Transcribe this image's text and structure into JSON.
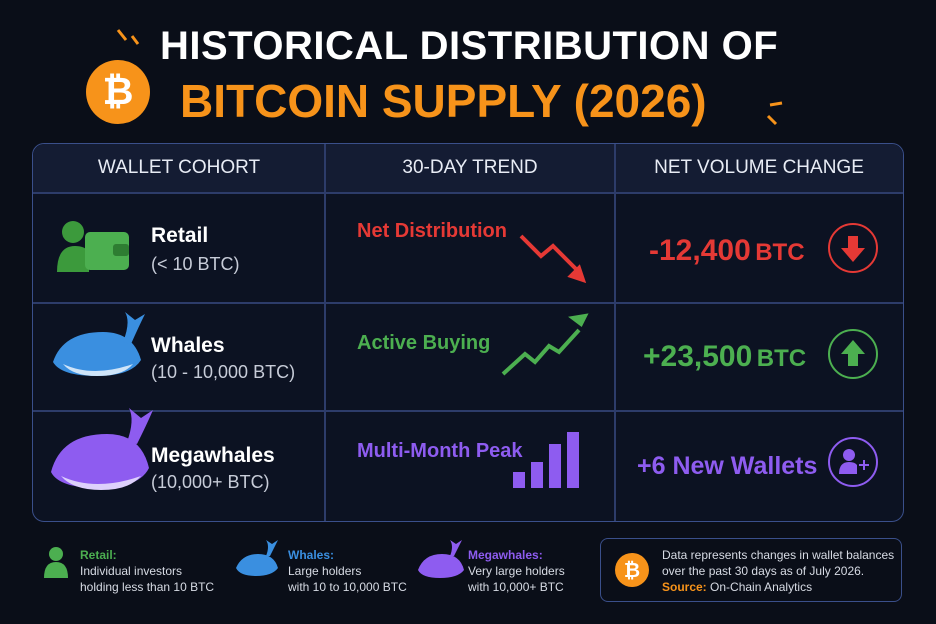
{
  "logo": {
    "symbol": "₿"
  },
  "header": {
    "title_line1": "HISTORICAL DISTRIBUTION OF",
    "title_line2": "BITCOIN SUPPLY (2026)"
  },
  "table": {
    "columns": [
      "WALLET COHORT",
      "30-DAY TREND",
      "NET VOLUME CHANGE"
    ],
    "rows": [
      {
        "cohort": "Retail",
        "range": "(< 10 BTC)",
        "trend": "Net Distribution",
        "change": "-12,400",
        "unit": "BTC"
      },
      {
        "cohort": "Whales",
        "range": "(10 - 10,000 BTC)",
        "trend": "Active Buying",
        "change": "+23,500",
        "unit": "BTC"
      },
      {
        "cohort": "Megawhales",
        "range": "(10,000+ BTC)",
        "trend": "Multi-Month Peak",
        "change": "+6 New Wallets",
        "unit": null
      }
    ]
  },
  "legend": [
    {
      "label": "Retail:",
      "line1": "Individual investors",
      "line2": "holding less than 10 BTC"
    },
    {
      "label": "Whales:",
      "line1": "Large holders",
      "line2": "with 10 to 10,000 BTC"
    },
    {
      "label": "Megawhales:",
      "line1": "Very large holders",
      "line2": "with 10,000+ BTC"
    }
  ],
  "note": {
    "line1": "Data represents changes in wallet balances",
    "line2": "over the past 30 days as of July 2026.",
    "source_label": "Source:",
    "source": "On-Chain Analytics"
  }
}
